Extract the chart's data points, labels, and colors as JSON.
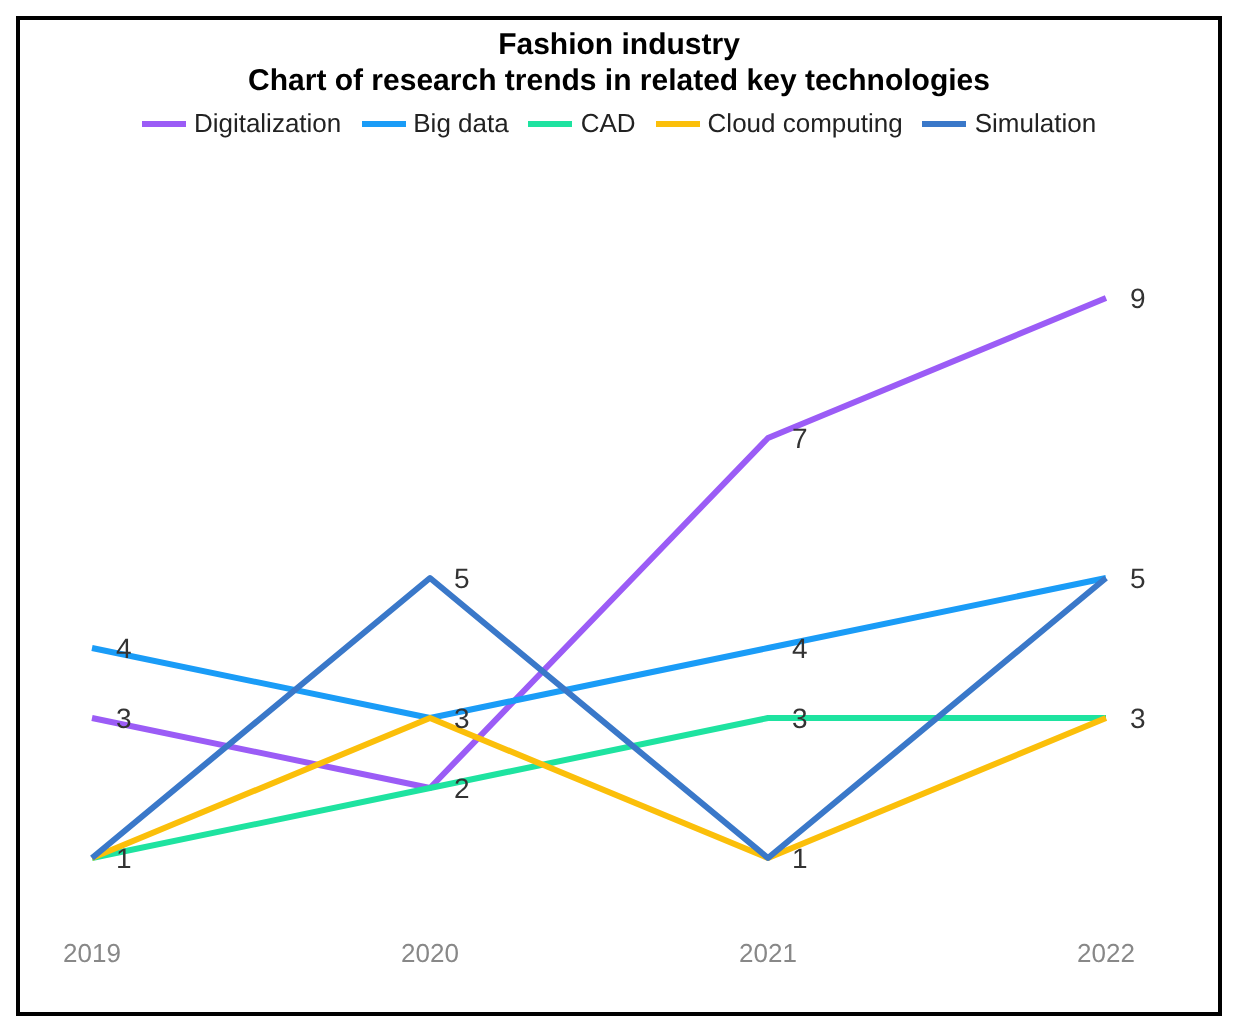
{
  "chart_data": {
    "type": "line",
    "title": "Fashion industry\nChart of research trends in related key technologies",
    "categories": [
      "2019",
      "2020",
      "2021",
      "2022"
    ],
    "series": [
      {
        "name": "Digitalization",
        "color": "#9b5cf6",
        "values": [
          3,
          2,
          7,
          9
        ],
        "value_labels": [
          "3",
          "2",
          "7",
          "9"
        ]
      },
      {
        "name": "Big data",
        "color": "#1a9cf7",
        "values": [
          4,
          3,
          4,
          5
        ],
        "value_labels": [
          "4",
          "3",
          "4",
          "5"
        ]
      },
      {
        "name": "CAD",
        "color": "#1ee3a0",
        "values": [
          1,
          2,
          3,
          3
        ],
        "value_labels": [
          "1",
          null,
          "3",
          "3"
        ]
      },
      {
        "name": "Cloud computing",
        "color": "#fbbf0a",
        "values": [
          1,
          3,
          1,
          3
        ],
        "value_labels": [
          null,
          null,
          "1",
          null
        ]
      },
      {
        "name": "Simulation",
        "color": "#3a78c9",
        "values": [
          1,
          5,
          1,
          5
        ],
        "value_labels": [
          null,
          "5",
          null,
          null
        ]
      }
    ],
    "legend": "top",
    "marker": "none",
    "line_style": "solid"
  }
}
